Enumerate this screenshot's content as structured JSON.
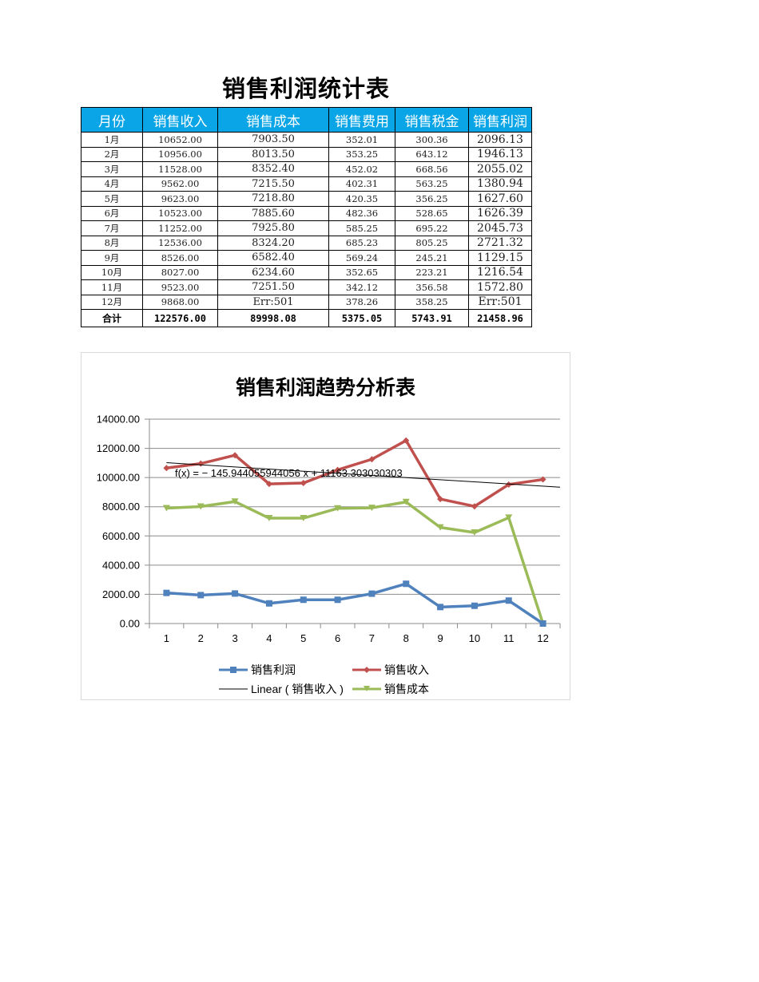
{
  "page": {
    "title": "销售利润统计表"
  },
  "table": {
    "headers": [
      "月份",
      "销售收入",
      "销售成本",
      "销售费用",
      "销售税金",
      "销售利润"
    ],
    "rows": [
      [
        "1月",
        "10652.00",
        "7903.50",
        "352.01",
        "300.36",
        "2096.13"
      ],
      [
        "2月",
        "10956.00",
        "8013.50",
        "353.25",
        "643.12",
        "1946.13"
      ],
      [
        "3月",
        "11528.00",
        "8352.40",
        "452.02",
        "668.56",
        "2055.02"
      ],
      [
        "4月",
        "9562.00",
        "7215.50",
        "402.31",
        "563.25",
        "1380.94"
      ],
      [
        "5月",
        "9623.00",
        "7218.80",
        "420.35",
        "356.25",
        "1627.60"
      ],
      [
        "6月",
        "10523.00",
        "7885.60",
        "482.36",
        "528.65",
        "1626.39"
      ],
      [
        "7月",
        "11252.00",
        "7925.80",
        "585.25",
        "695.22",
        "2045.73"
      ],
      [
        "8月",
        "12536.00",
        "8324.20",
        "685.23",
        "805.25",
        "2721.32"
      ],
      [
        "9月",
        "8526.00",
        "6582.40",
        "569.24",
        "245.21",
        "1129.15"
      ],
      [
        "10月",
        "8027.00",
        "6234.60",
        "352.65",
        "223.21",
        "1216.54"
      ],
      [
        "11月",
        "9523.00",
        "7251.50",
        "342.12",
        "356.58",
        "1572.80"
      ],
      [
        "12月",
        "9868.00",
        "Err:501",
        "378.26",
        "358.25",
        "Err:501"
      ]
    ],
    "total": [
      "合计",
      "122576.00",
      "89998.08",
      "5375.05",
      "5743.91",
      "21458.96"
    ],
    "header_bg": "#0aa5e6"
  },
  "chart_data": {
    "type": "line",
    "title": "销售利润趋势分析表",
    "xlabel": "",
    "ylabel": "",
    "categories": [
      "1",
      "2",
      "3",
      "4",
      "5",
      "6",
      "7",
      "8",
      "9",
      "10",
      "11",
      "12"
    ],
    "ylim": [
      0,
      14000
    ],
    "yticks": [
      "0.00",
      "2000.00",
      "4000.00",
      "6000.00",
      "8000.00",
      "10000.00",
      "12000.00",
      "14000.00"
    ],
    "grid": true,
    "legend_position": "bottom",
    "series": [
      {
        "name": "销售利润",
        "color": "#4f81bd",
        "marker": "square",
        "values": [
          2096.13,
          1946.13,
          2055.02,
          1380.94,
          1627.6,
          1626.39,
          2045.73,
          2721.32,
          1129.15,
          1216.54,
          1572.8,
          0
        ]
      },
      {
        "name": "销售收入",
        "color": "#c0504d",
        "marker": "diamond",
        "values": [
          10652,
          10956,
          11528,
          9562,
          9623,
          10523,
          11252,
          12536,
          8526,
          8027,
          9523,
          9868
        ]
      },
      {
        "name": "销售成本",
        "color": "#9bbb59",
        "marker": "triangle-down",
        "values": [
          7903.5,
          8013.5,
          8352.4,
          7215.5,
          7218.8,
          7885.6,
          7925.8,
          8324.2,
          6582.4,
          6234.6,
          7251.5,
          0
        ]
      }
    ],
    "trendline": {
      "name": "Linear ( 销售收入 )",
      "color": "#000000",
      "slope": -145.944055944056,
      "intercept": 11163.303030303,
      "equation_label": "f(x) = − 145.944055944056 x + 11163.303030303"
    },
    "legend": [
      "销售利润",
      "销售收入",
      "Linear ( 销售收入 )",
      "销售成本"
    ]
  }
}
